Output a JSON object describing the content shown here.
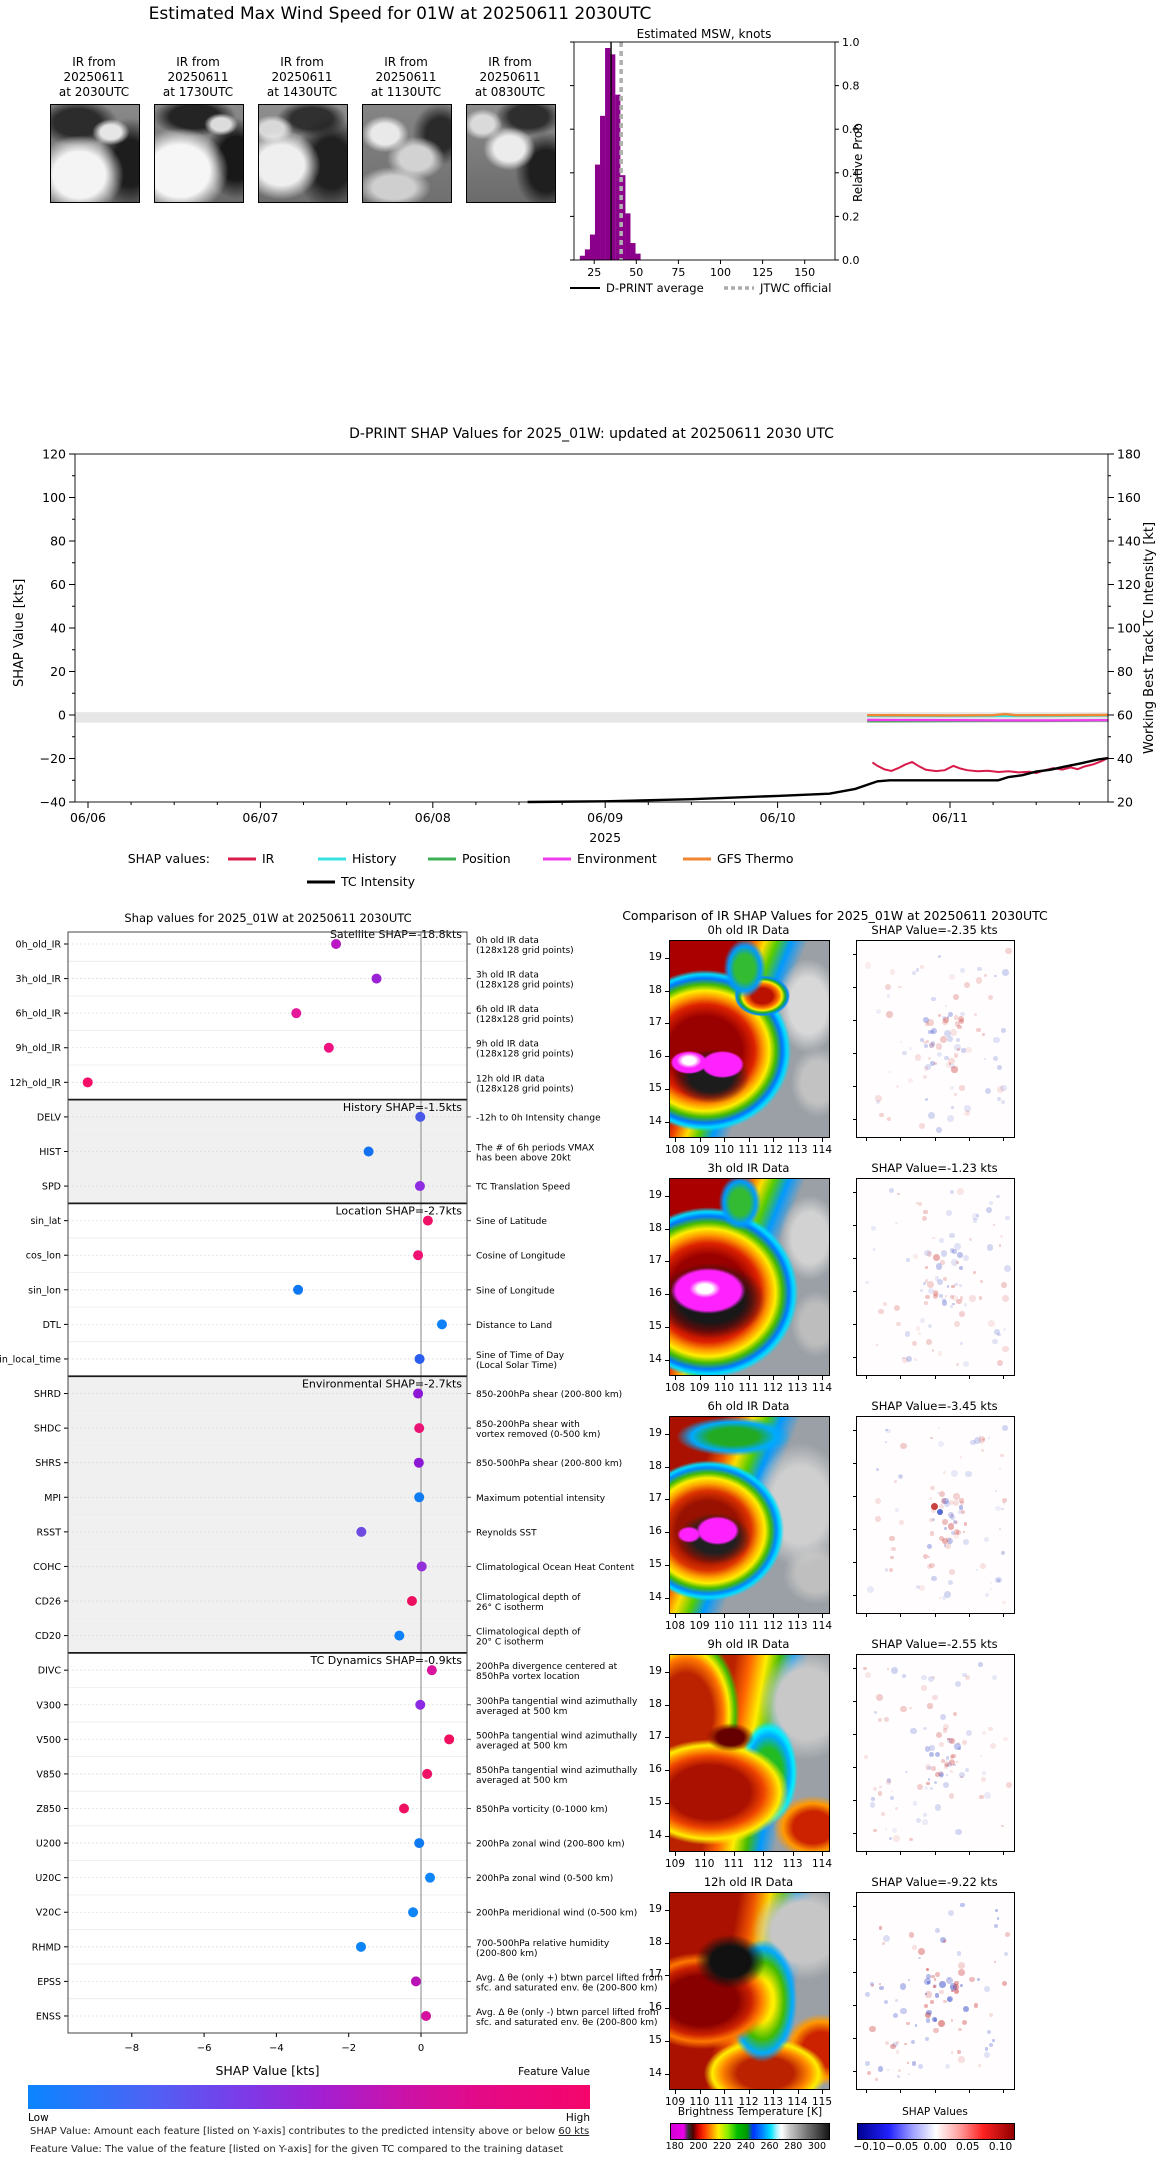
{
  "top_panel": {
    "title": "Estimated Max Wind Speed for 01W at 20250611 2030UTC",
    "ir_thumbnails": [
      {
        "caption": "IR from\n20250611\nat 2030UTC"
      },
      {
        "caption": "IR from\n20250611\nat 1730UTC"
      },
      {
        "caption": "IR from\n20250611\nat 1430UTC"
      },
      {
        "caption": "IR from\n20250611\nat 1130UTC"
      },
      {
        "caption": "IR from\n20250611\nat 0830UTC"
      }
    ]
  },
  "chart_data": [
    {
      "id": "msw_histogram",
      "type": "bar",
      "title": "Estimated MSW, knots",
      "ylabel": "Relative Prob",
      "x_ticks": [
        25,
        50,
        75,
        100,
        125,
        150
      ],
      "y_ticks": [
        "0.0",
        "0.2",
        "0.4",
        "0.6",
        "0.8",
        "1.0"
      ],
      "xlim": [
        13,
        168
      ],
      "bar_color": "#8b008b",
      "bin_width_kt": 3,
      "bins": [
        [
          18,
          0.02
        ],
        [
          21,
          0.05
        ],
        [
          24,
          0.12
        ],
        [
          27,
          0.45
        ],
        [
          30,
          0.68
        ],
        [
          33,
          1.0
        ],
        [
          36,
          0.97
        ],
        [
          39,
          0.78
        ],
        [
          42,
          0.4
        ],
        [
          45,
          0.22
        ],
        [
          48,
          0.08
        ],
        [
          51,
          0.03
        ]
      ],
      "dprint_average_kt": 35,
      "jtwc_official_kt": 41,
      "legend": [
        {
          "label": "D-PRINT average",
          "style": "solid",
          "color": "#000000"
        },
        {
          "label": "JTWC official",
          "style": "dashed",
          "color": "#aaaaaa"
        }
      ]
    },
    {
      "id": "shap_timeseries",
      "type": "line",
      "title": "D-PRINT SHAP Values for 2025_01W: updated at 20250611 2030 UTC",
      "ylabel_left": "SHAP Value [kts]",
      "ylabel_right": "Working Best Track TC Intensity [kt]",
      "x_tick_labels": [
        "06/06",
        "06/07",
        "06/08",
        "06/09",
        "06/10",
        "06/11"
      ],
      "x_year_label": "2025",
      "y_ticks_left": [
        "120",
        "100",
        "80",
        "60",
        "40",
        "20",
        "0",
        "−20",
        "−40"
      ],
      "y_ticks_right": [
        "180",
        "160",
        "140",
        "120",
        "100",
        "80",
        "60",
        "40",
        "20"
      ],
      "ylim_right_kt": [
        20,
        180
      ],
      "zero_band": {
        "top_kt": 61.3,
        "bottom_kt": 56.5,
        "color": "#e6e6e6"
      },
      "legend_title": "SHAP values:",
      "series": [
        {
          "name": "IR",
          "color": "#d81b4a",
          "width": 2,
          "points_kt": [
            [
              4.55,
              38.2
            ],
            [
              4.58,
              36.6
            ],
            [
              4.62,
              35.0
            ],
            [
              4.66,
              34.3
            ],
            [
              4.7,
              35.6
            ],
            [
              4.74,
              37.2
            ],
            [
              4.78,
              38.4
            ],
            [
              4.82,
              36.4
            ],
            [
              4.86,
              34.8
            ],
            [
              4.92,
              34.2
            ],
            [
              4.97,
              34.6
            ],
            [
              5.02,
              36.6
            ],
            [
              5.06,
              35.4
            ],
            [
              5.1,
              34.6
            ],
            [
              5.16,
              34.1
            ],
            [
              5.22,
              34.4
            ],
            [
              5.28,
              33.8
            ],
            [
              5.34,
              34.1
            ],
            [
              5.4,
              33.6
            ],
            [
              5.46,
              33.9
            ],
            [
              5.5,
              33.3
            ],
            [
              5.55,
              34.6
            ],
            [
              5.6,
              35.6
            ],
            [
              5.65,
              34.9
            ],
            [
              5.7,
              35.9
            ],
            [
              5.74,
              35.1
            ],
            [
              5.78,
              36.3
            ],
            [
              5.83,
              37.3
            ],
            [
              5.88,
              38.8
            ],
            [
              5.92,
              40.4
            ]
          ]
        },
        {
          "name": "History",
          "color": "#38e0e0",
          "width": 2,
          "points_kt": [
            [
              4.52,
              59.5
            ],
            [
              5.0,
              59.4
            ],
            [
              5.5,
              59.5
            ],
            [
              5.92,
              59.7
            ]
          ]
        },
        {
          "name": "Position",
          "color": "#3cb054",
          "width": 2,
          "points_kt": [
            [
              4.52,
              57.0
            ],
            [
              5.0,
              57.1
            ],
            [
              5.5,
              57.2
            ],
            [
              5.92,
              57.4
            ]
          ]
        },
        {
          "name": "Environment",
          "color": "#ee3cee",
          "width": 2.4,
          "points_kt": [
            [
              4.52,
              57.7
            ],
            [
              5.0,
              57.6
            ],
            [
              5.3,
              57.5
            ],
            [
              5.6,
              57.5
            ],
            [
              5.92,
              57.6
            ]
          ]
        },
        {
          "name": "GFS Thermo",
          "color": "#f08532",
          "width": 2.4,
          "points_kt": [
            [
              4.52,
              59.9
            ],
            [
              5.0,
              59.8
            ],
            [
              5.25,
              59.9
            ],
            [
              5.32,
              60.4
            ],
            [
              5.38,
              59.9
            ],
            [
              5.6,
              59.9
            ],
            [
              5.92,
              60.0
            ]
          ]
        },
        {
          "name": "TC Intensity",
          "color": "#000000",
          "width": 2.4,
          "points_kt": [
            [
              2.55,
              20
            ],
            [
              3.0,
              20.3
            ],
            [
              3.5,
              21.3
            ],
            [
              4.0,
              22.8
            ],
            [
              4.3,
              23.8
            ],
            [
              4.45,
              26
            ],
            [
              4.58,
              29.5
            ],
            [
              4.65,
              30
            ],
            [
              5.28,
              30
            ],
            [
              5.34,
              31.5
            ],
            [
              5.42,
              32.3
            ],
            [
              5.5,
              34
            ],
            [
              5.58,
              34.8
            ],
            [
              5.66,
              36.2
            ],
            [
              5.76,
              37.8
            ],
            [
              5.86,
              39.6
            ],
            [
              5.92,
              40.2
            ]
          ]
        }
      ]
    },
    {
      "id": "shap_dotplot",
      "type": "scatter",
      "title": "Shap values for 2025_01W at 20250611 2030UTC",
      "xlabel": "SHAP Value [kts]",
      "x_ticks": [
        {
          "v": -8,
          "label": "−8"
        },
        {
          "v": -6,
          "label": "−6"
        },
        {
          "v": -4,
          "label": "−4"
        },
        {
          "v": -2,
          "label": "−2"
        },
        {
          "v": 0,
          "label": "0"
        }
      ],
      "xlim": [
        -9.85,
        1.3
      ],
      "groups": [
        {
          "header": "Satellite SHAP=-18.8kts",
          "shaded": false,
          "features": [
            {
              "name": "0h_old_IR",
              "value": -2.35,
              "color": "#bb16c4",
              "annotation": "0h old IR data\n(128x128 grid points)"
            },
            {
              "name": "3h_old_IR",
              "value": -1.23,
              "color": "#9a23d6",
              "annotation": "3h old IR data\n(128x128 grid points)"
            },
            {
              "name": "6h_old_IR",
              "value": -3.45,
              "color": "#e5189a",
              "annotation": "6h old IR data\n(128x128 grid points)"
            },
            {
              "name": "9h_old_IR",
              "value": -2.55,
              "color": "#ef1280",
              "annotation": "9h old IR data\n(128x128 grid points)"
            },
            {
              "name": "12h_old_IR",
              "value": -9.22,
              "color": "#f50f69",
              "annotation": "12h old IR data\n(128x128 grid points)"
            }
          ]
        },
        {
          "header": "History SHAP=-1.5kts",
          "shaded": true,
          "features": [
            {
              "name": "DELV",
              "value": -0.02,
              "color": "#4a58e8",
              "annotation": "-12h to 0h Intensity change"
            },
            {
              "name": "HIST",
              "value": -1.45,
              "color": "#1272f2",
              "annotation": "The # of 6h periods VMAX\nhas been above 20kt"
            },
            {
              "name": "SPD",
              "value": -0.03,
              "color": "#8f2be0",
              "annotation": "TC Translation Speed"
            }
          ]
        },
        {
          "header": "Location SHAP=-2.7kts",
          "shaded": false,
          "features": [
            {
              "name": "sin_lat",
              "value": 0.19,
              "color": "#ef1367",
              "annotation": "Sine of Latitude"
            },
            {
              "name": "cos_lon",
              "value": -0.08,
              "color": "#f01173",
              "annotation": "Cosine of Longitude"
            },
            {
              "name": "sin_lon",
              "value": -3.4,
              "color": "#0d78f2",
              "annotation": "Sine of Longitude"
            },
            {
              "name": "DTL",
              "value": 0.58,
              "color": "#0d82f8",
              "annotation": "Distance to Land"
            },
            {
              "name": "sin_local_time",
              "value": -0.04,
              "color": "#2a5cf0",
              "annotation": "Sine of Time of Day\n(Local Solar Time)"
            }
          ]
        },
        {
          "header": "Environmental SHAP=-2.7kts",
          "shaded": true,
          "features": [
            {
              "name": "SHRD",
              "value": -0.08,
              "color": "#8c17d4",
              "annotation": "850-200hPa shear (200-800 km)"
            },
            {
              "name": "SHDC",
              "value": -0.05,
              "color": "#ea1375",
              "annotation": "850-200hPa shear with\nvortex removed (0-500 km)"
            },
            {
              "name": "SHRS",
              "value": -0.06,
              "color": "#8c17d4",
              "annotation": "850-500hPa shear (200-800 km)"
            },
            {
              "name": "MPI",
              "value": -0.05,
              "color": "#0f7cf4",
              "annotation": "Maximum potential intensity"
            },
            {
              "name": "RSST",
              "value": -1.65,
              "color": "#6e4ae0",
              "annotation": "Reynolds SST"
            },
            {
              "name": "COHC",
              "value": 0.02,
              "color": "#9330da",
              "annotation": "Climatological Ocean Heat Content"
            },
            {
              "name": "CD26",
              "value": -0.25,
              "color": "#ee1060",
              "annotation": "Climatological depth of\n26° C isotherm"
            },
            {
              "name": "CD20",
              "value": -0.6,
              "color": "#0d82f8",
              "annotation": "Climatological depth of\n20° C isotherm"
            }
          ]
        },
        {
          "header": "TC Dynamics SHAP=-0.9kts",
          "shaded": false,
          "features": [
            {
              "name": "DIVC",
              "value": 0.3,
              "color": "#d9159e",
              "annotation": "200hPa divergence centered at\n850hPa vortex location"
            },
            {
              "name": "V300",
              "value": -0.02,
              "color": "#8b2ae2",
              "annotation": "300hPa tangential wind azimuthally\naveraged at 500 km"
            },
            {
              "name": "V500",
              "value": 0.78,
              "color": "#f20e5e",
              "annotation": "500hPa tangential wind azimuthally\naveraged at 500 km"
            },
            {
              "name": "V850",
              "value": 0.17,
              "color": "#ee1165",
              "annotation": "850hPa tangential wind azimuthally\naveraged at 500 km"
            },
            {
              "name": "Z850",
              "value": -0.47,
              "color": "#f01062",
              "annotation": "850hPa vorticity (0-1000 km)"
            },
            {
              "name": "U200",
              "value": -0.05,
              "color": "#0e7af2",
              "annotation": "200hPa zonal wind (200-800 km)"
            },
            {
              "name": "U20C",
              "value": 0.25,
              "color": "#0f86f8",
              "annotation": "200hPa zonal wind (0-500 km)"
            },
            {
              "name": "V20C",
              "value": -0.22,
              "color": "#0f86f8",
              "annotation": "200hPa meridional wind (0-500 km)"
            },
            {
              "name": "RHMD",
              "value": -1.66,
              "color": "#0b84fa",
              "annotation": "700-500hPa relative humidity\n(200-800 km)"
            },
            {
              "name": "EPSS",
              "value": -0.14,
              "color": "#b912b6",
              "annotation": "Avg. Δ θe (only +) btwn parcel lifted from\nsfc. and saturated env. θe (200-800 km)"
            },
            {
              "name": "ENSS",
              "value": 0.14,
              "color": "#d4129e",
              "annotation": "Avg. Δ θe (only -) btwn parcel lifted from\nsfc. and saturated env. θe (200-800 km)"
            }
          ]
        }
      ],
      "colorbar": {
        "title": "Feature Value",
        "low_label": "Low",
        "high_label": "High"
      },
      "footnotes": [
        {
          "pre": "SHAP Value: Amount each feature [listed on Y-axis] contributes to the predicted intensity above or below ",
          "underline": "60 kts"
        },
        {
          "pre": "Feature Value: The value of the feature [listed on Y-axis] for the given TC compared to the training dataset",
          "underline": ""
        }
      ]
    },
    {
      "id": "ir_comparison",
      "type": "heatmap",
      "title": "Comparison of IR SHAP Values for 2025_01W at 20250611 2030UTC",
      "rows": [
        {
          "ir_title": "0h old IR Data",
          "shap_title": "SHAP Value=-2.35 kts",
          "x_ticks": [
            "108",
            "109",
            "110",
            "111",
            "112",
            "113",
            "114"
          ],
          "y_ticks": [
            "19",
            "18",
            "17",
            "16",
            "15",
            "14"
          ]
        },
        {
          "ir_title": "3h old IR Data",
          "shap_title": "SHAP Value=-1.23 kts",
          "x_ticks": [
            "108",
            "109",
            "110",
            "111",
            "112",
            "113",
            "114"
          ],
          "y_ticks": [
            "19",
            "18",
            "17",
            "16",
            "15",
            "14"
          ]
        },
        {
          "ir_title": "6h old IR Data",
          "shap_title": "SHAP Value=-3.45 kts",
          "x_ticks": [
            "108",
            "109",
            "110",
            "111",
            "112",
            "113",
            "114"
          ],
          "y_ticks": [
            "19",
            "18",
            "17",
            "16",
            "15",
            "14"
          ]
        },
        {
          "ir_title": "9h old IR Data",
          "shap_title": "SHAP Value=-2.55 kts",
          "x_ticks": [
            "109",
            "110",
            "111",
            "112",
            "113",
            "114"
          ],
          "y_ticks": [
            "19",
            "18",
            "17",
            "16",
            "15",
            "14"
          ]
        },
        {
          "ir_title": "12h old IR Data",
          "shap_title": "SHAP Value=-9.22 kts",
          "x_ticks": [
            "109",
            "110",
            "111",
            "112",
            "113",
            "114",
            "115"
          ],
          "y_ticks": [
            "19",
            "18",
            "17",
            "16",
            "15",
            "14"
          ]
        }
      ],
      "bt_colorbar": {
        "title": "Brightness Temperature [K]",
        "ticks": [
          "180",
          "200",
          "220",
          "240",
          "260",
          "280",
          "300"
        ]
      },
      "shap_colorbar": {
        "title": "SHAP Values",
        "ticks": [
          "−0.10",
          "−0.05",
          "0.00",
          "0.05",
          "0.10"
        ]
      }
    }
  ]
}
